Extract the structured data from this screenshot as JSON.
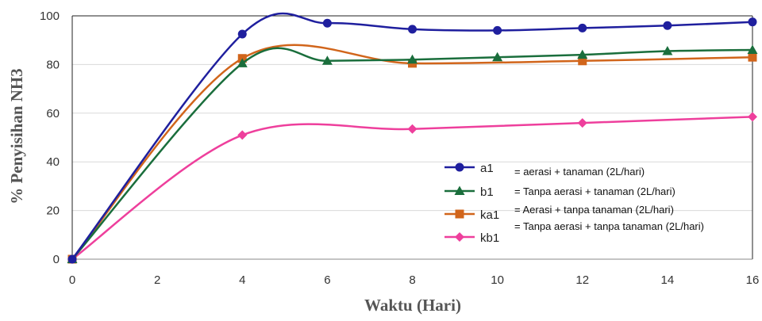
{
  "chart_data": {
    "type": "line",
    "xlabel": "Waktu (Hari)",
    "ylabel": "% Penyisihan NH3",
    "xlim": [
      0,
      16
    ],
    "ylim": [
      0,
      100
    ],
    "xticks": [
      0,
      2,
      4,
      6,
      8,
      10,
      12,
      14,
      16
    ],
    "yticks": [
      0,
      20,
      40,
      60,
      80,
      100
    ],
    "grid": "horizontal",
    "smooth": true,
    "legend_position": "lower-right",
    "series": [
      {
        "name": "a1",
        "description": "= aerasi + tanaman  (2L/hari)",
        "color": "#1f1f9e",
        "marker": "circle",
        "x": [
          0,
          4,
          6,
          8,
          10,
          12,
          14,
          16
        ],
        "y": [
          0,
          92.5,
          97,
          94.5,
          94,
          95,
          96,
          97.5
        ]
      },
      {
        "name": "b1",
        "description": "= Tanpa aerasi + tanaman  (2L/hari)",
        "color": "#1a6e3c",
        "marker": "triangle",
        "x": [
          0,
          4,
          6,
          8,
          10,
          12,
          14,
          16
        ],
        "y": [
          0,
          80.5,
          81.5,
          82,
          83,
          84,
          85.5,
          86
        ]
      },
      {
        "name": "ka1",
        "description": "= Aerasi + tanpa tanaman  (2L/hari)",
        "color": "#d1651b",
        "marker": "square",
        "x": [
          0,
          4,
          8,
          12,
          16
        ],
        "y": [
          0,
          82.5,
          80.5,
          81.5,
          83
        ]
      },
      {
        "name": "kb1",
        "description": "= Tanpa aerasi + tanpa  tanaman (2L/hari)",
        "color": "#ee3f9c",
        "marker": "diamond",
        "x": [
          0,
          4,
          8,
          12,
          16
        ],
        "y": [
          0,
          51,
          53.5,
          56,
          58.5
        ]
      }
    ]
  }
}
